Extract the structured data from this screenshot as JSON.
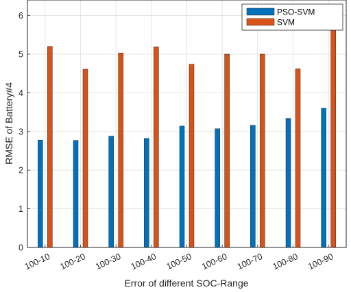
{
  "chart_data": {
    "type": "bar",
    "title": "",
    "xlabel": "Error of different SOC-Range",
    "ylabel": "RMSE of Battery#4",
    "categories": [
      "100-10",
      "100-20",
      "100-30",
      "100-40",
      "100-50",
      "100-60",
      "100-70",
      "100-80",
      "100-90"
    ],
    "series": [
      {
        "name": "PSO-SVM",
        "color": "#0072BD",
        "values": [
          2.78,
          2.77,
          2.88,
          2.82,
          3.14,
          3.07,
          3.16,
          3.34,
          3.6
        ]
      },
      {
        "name": "SVM",
        "color": "#D95319",
        "values": [
          5.2,
          4.61,
          5.03,
          5.19,
          4.74,
          5.0,
          5.0,
          4.62,
          6.17
        ]
      }
    ],
    "ylim": [
      0,
      6.4
    ],
    "yticks": [
      0,
      1,
      2,
      3,
      4,
      5,
      6
    ],
    "grid": true,
    "legend_position": "top-right"
  }
}
